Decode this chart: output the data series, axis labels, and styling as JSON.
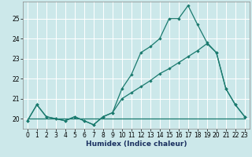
{
  "xlabel": "Humidex (Indice chaleur)",
  "background_color": "#cce8ea",
  "grid_color": "#ffffff",
  "line_color": "#1a7a6e",
  "xlim": [
    -0.5,
    23.5
  ],
  "ylim": [
    19.5,
    25.85
  ],
  "yticks": [
    20,
    21,
    22,
    23,
    24,
    25
  ],
  "xticks": [
    0,
    1,
    2,
    3,
    4,
    5,
    6,
    7,
    8,
    9,
    10,
    11,
    12,
    13,
    14,
    15,
    16,
    17,
    18,
    19,
    20,
    21,
    22,
    23
  ],
  "series1": [
    19.9,
    20.7,
    20.1,
    20.0,
    19.9,
    20.1,
    19.9,
    19.7,
    20.1,
    20.3,
    21.5,
    22.2,
    23.3,
    23.6,
    24.0,
    25.0,
    25.0,
    25.65,
    24.7,
    23.8,
    23.3,
    21.5,
    20.7,
    20.1
  ],
  "series2": [
    19.9,
    20.7,
    20.1,
    20.0,
    19.9,
    20.1,
    19.9,
    19.7,
    20.1,
    20.3,
    21.0,
    21.3,
    21.6,
    21.9,
    22.25,
    22.5,
    22.8,
    23.1,
    23.4,
    23.75,
    23.3,
    21.5,
    20.7,
    20.1
  ],
  "series3": [
    20.0,
    20.0,
    20.0,
    20.0,
    20.0,
    20.0,
    20.0,
    20.0,
    20.0,
    20.0,
    20.0,
    20.0,
    20.0,
    20.0,
    20.0,
    20.0,
    20.0,
    20.0,
    20.0,
    20.0,
    20.0,
    20.0,
    20.0,
    20.0
  ],
  "xlabel_fontsize": 6.5,
  "xlabel_color": "#1a3060",
  "tick_fontsize": 5.5
}
